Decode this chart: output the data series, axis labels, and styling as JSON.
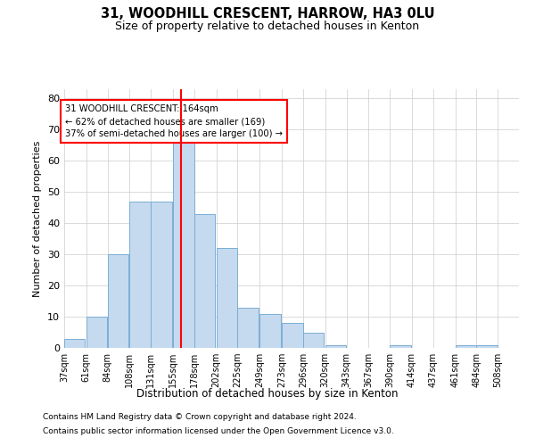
{
  "title_line1": "31, WOODHILL CRESCENT, HARROW, HA3 0LU",
  "title_line2": "Size of property relative to detached houses in Kenton",
  "xlabel": "Distribution of detached houses by size in Kenton",
  "ylabel": "Number of detached properties",
  "bar_color": "#c5d9ef",
  "bar_edge_color": "#7aafd4",
  "ref_line_color": "red",
  "ref_line_x": 164,
  "annotation_text": "31 WOODHILL CRESCENT: 164sqm\n← 62% of detached houses are smaller (169)\n37% of semi-detached houses are larger (100) →",
  "annotation_box_color": "white",
  "annotation_box_edge": "red",
  "grid_color": "#cccccc",
  "background_color": "white",
  "footnote1": "Contains HM Land Registry data © Crown copyright and database right 2024.",
  "footnote2": "Contains public sector information licensed under the Open Government Licence v3.0.",
  "bins_left": [
    37,
    61,
    84,
    108,
    131,
    155,
    178,
    202,
    225,
    249,
    273,
    296,
    320,
    343,
    367,
    390,
    414,
    437,
    461,
    484
  ],
  "bin_width": 23,
  "bin_labels": [
    "37sqm",
    "61sqm",
    "84sqm",
    "108sqm",
    "131sqm",
    "155sqm",
    "178sqm",
    "202sqm",
    "225sqm",
    "249sqm",
    "273sqm",
    "296sqm",
    "320sqm",
    "343sqm",
    "367sqm",
    "390sqm",
    "414sqm",
    "437sqm",
    "461sqm",
    "484sqm",
    "508sqm"
  ],
  "bar_heights": [
    3,
    10,
    30,
    47,
    47,
    66,
    43,
    32,
    13,
    11,
    8,
    5,
    1,
    0,
    0,
    1,
    0,
    0,
    1,
    1
  ],
  "ylim": [
    0,
    83
  ],
  "yticks": [
    0,
    10,
    20,
    30,
    40,
    50,
    60,
    70,
    80
  ]
}
